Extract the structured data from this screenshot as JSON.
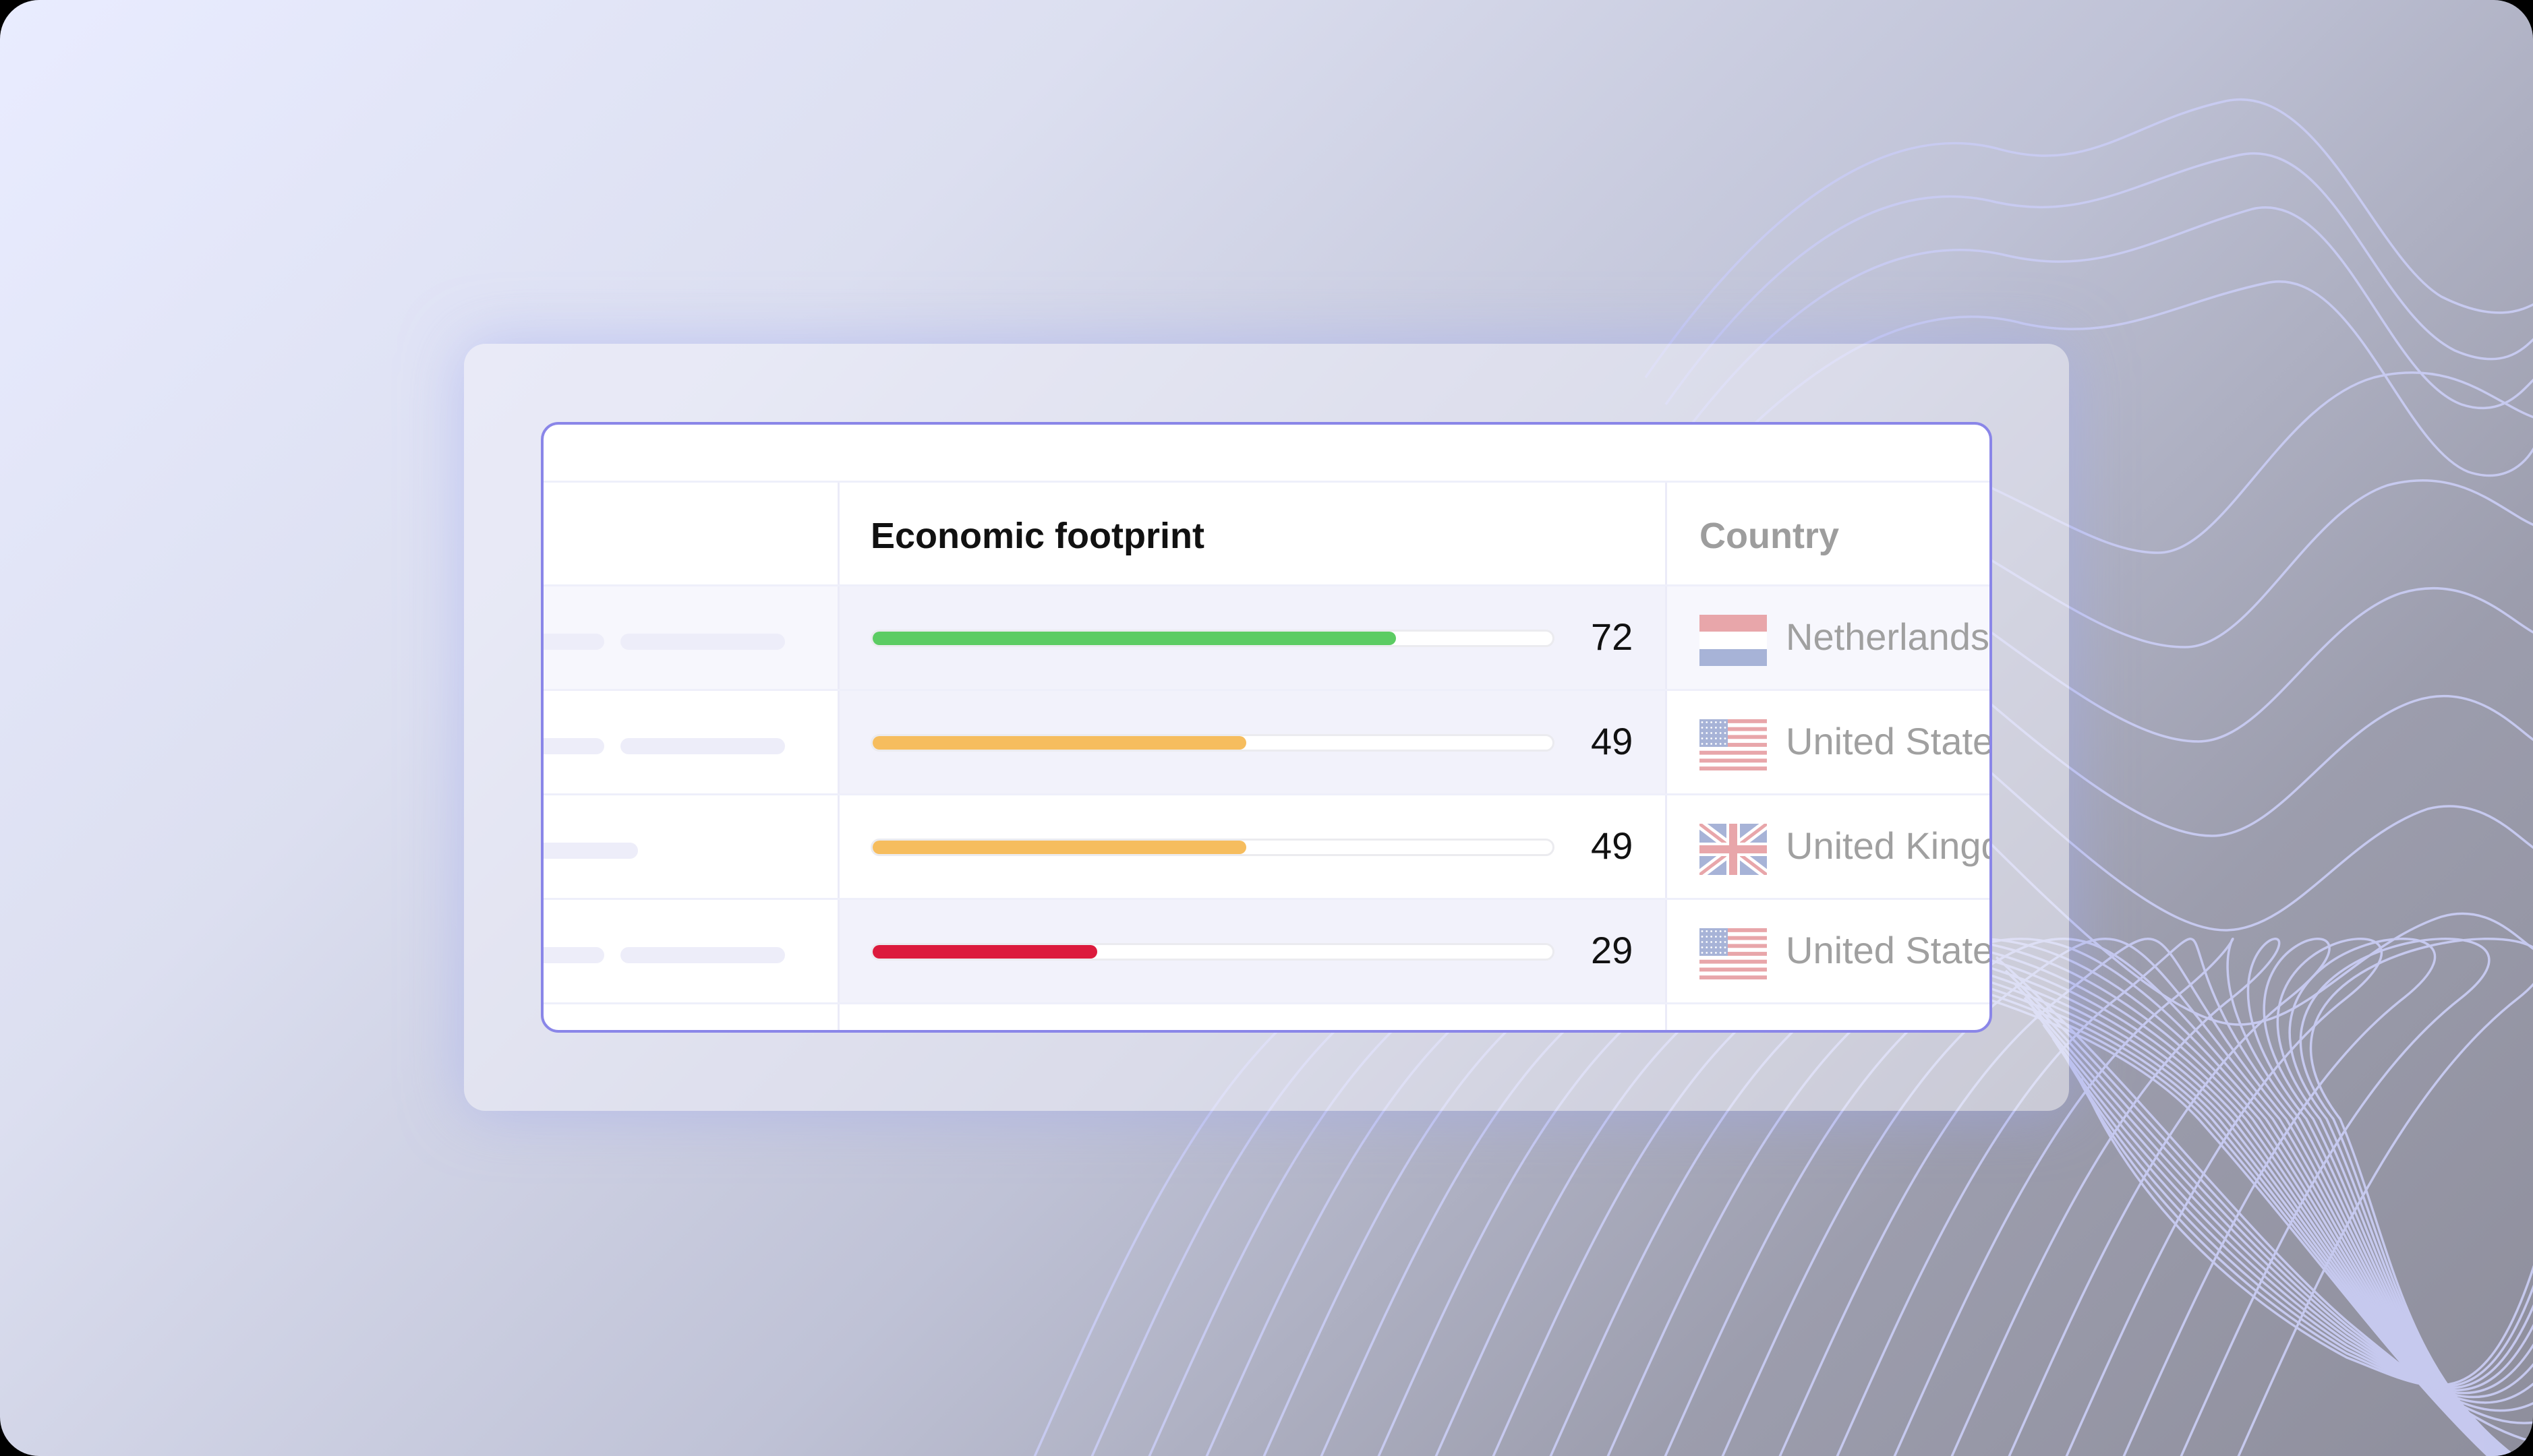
{
  "table": {
    "columns": {
      "economic_footprint": "Economic footprint",
      "country": "Country"
    },
    "rows": [
      {
        "score": "72",
        "fill_fraction": 0.77,
        "bar_color": "#5ccc63",
        "country": "Netherlands",
        "flag": "netherlands-flag-icon"
      },
      {
        "score": "49",
        "fill_fraction": 0.55,
        "bar_color": "#f6bd5e",
        "country": "United State",
        "flag": "usa-flag-icon"
      },
      {
        "score": "49",
        "fill_fraction": 0.55,
        "bar_color": "#f6bd5e",
        "country": "United Kingd",
        "flag": "uk-flag-icon"
      },
      {
        "score": "29",
        "fill_fraction": 0.33,
        "bar_color": "#dc1a3c",
        "country": "United State",
        "flag": "usa-flag-icon"
      }
    ]
  },
  "colors": {
    "accent_border": "#8a86e8",
    "green": "#5ccc63",
    "amber": "#f6bd5e",
    "red": "#dc1a3c"
  }
}
